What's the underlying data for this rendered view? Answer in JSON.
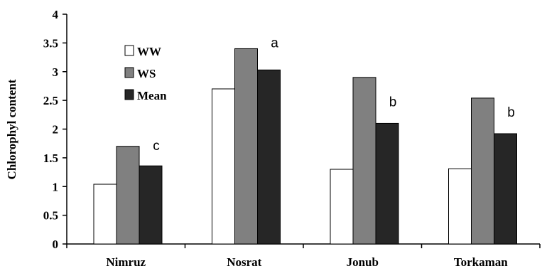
{
  "chart_data": {
    "type": "bar",
    "title": "",
    "xlabel": "",
    "ylabel": "Chlorophyl content",
    "ylim": [
      0,
      4
    ],
    "yticks": [
      "0",
      "0.5",
      "1",
      "1.5",
      "2",
      "2.5",
      "3",
      "3.5",
      "4"
    ],
    "categories": [
      "Nimruz",
      "Nosrat",
      "Jonub",
      "Torkaman"
    ],
    "series": [
      {
        "name": "WW",
        "values": [
          1.04,
          2.7,
          1.3,
          1.31
        ],
        "color": "#ffffff"
      },
      {
        "name": "WS",
        "values": [
          1.7,
          3.4,
          2.9,
          2.54
        ],
        "color": "#808080"
      },
      {
        "name": "Mean",
        "values": [
          1.36,
          3.03,
          2.1,
          1.92
        ],
        "color": "#262626"
      }
    ],
    "significance_letters": [
      "c",
      "a",
      "b",
      "b"
    ],
    "legend_position": "top-left",
    "grid": false
  }
}
